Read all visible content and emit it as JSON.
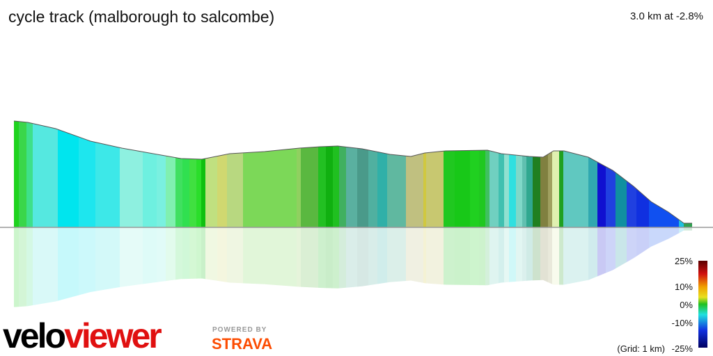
{
  "header": {
    "title": "cycle track (malborough to salcombe)",
    "summary": "3.0 km at -2.8%"
  },
  "legend": {
    "labels": [
      "25%",
      "10%",
      "0%",
      "-10%",
      "-25%"
    ],
    "grid_note": "(Grid: 1 km)"
  },
  "branding": {
    "logo_left": "velo",
    "logo_right": "viewer",
    "powered_by": "POWERED BY",
    "strava": "STRAVA"
  }
}
